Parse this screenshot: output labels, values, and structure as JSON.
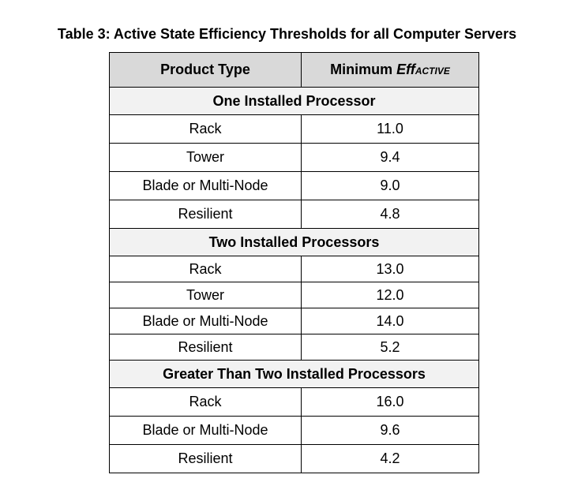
{
  "caption": "Table 3: Active State Efficiency Thresholds for all Computer Servers",
  "table": {
    "headers": {
      "col1": "Product Type",
      "col2_prefix": "Minimum ",
      "col2_eff": "Eff",
      "col2_sub": "ACTIVE"
    },
    "sections": [
      {
        "title": "One Installed Processor",
        "rows": [
          {
            "type": "Rack",
            "value": "11.0"
          },
          {
            "type": "Tower",
            "value": "9.4"
          },
          {
            "type": "Blade or Multi-Node",
            "value": "9.0"
          },
          {
            "type": "Resilient",
            "value": "4.8"
          }
        ]
      },
      {
        "title": "Two Installed Processors",
        "rows": [
          {
            "type": "Rack",
            "value": "13.0"
          },
          {
            "type": "Tower",
            "value": "12.0"
          },
          {
            "type": "Blade or Multi-Node",
            "value": "14.0"
          },
          {
            "type": "Resilient",
            "value": "5.2"
          }
        ]
      },
      {
        "title": "Greater Than Two Installed Processors",
        "rows": [
          {
            "type": "Rack",
            "value": "16.0"
          },
          {
            "type": "Blade or Multi-Node",
            "value": "9.6"
          },
          {
            "type": "Resilient",
            "value": "4.2"
          }
        ]
      }
    ]
  }
}
